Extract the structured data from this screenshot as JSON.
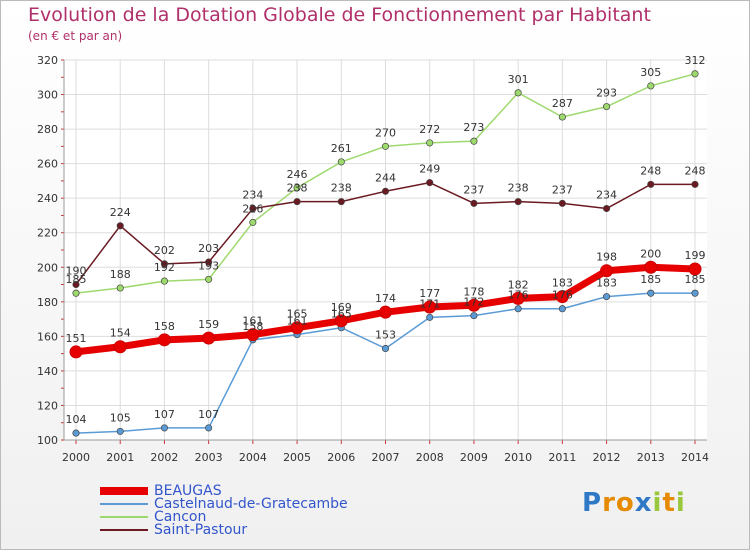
{
  "title": "Evolution de la Dotation Globale de Fonctionnement par Habitant",
  "subtitle": "(en € et par an)",
  "logo": "Proxiti",
  "chart_data": {
    "type": "line",
    "title": "Evolution de la Dotation Globale de Fonctionnement par Habitant",
    "subtitle": "(en € et par an)",
    "x": [
      "2000",
      "2001",
      "2002",
      "2003",
      "2004",
      "2005",
      "2006",
      "2007",
      "2008",
      "2009",
      "2010",
      "2011",
      "2012",
      "2013",
      "2014"
    ],
    "ylim": [
      100,
      320
    ],
    "yticks": [
      100,
      120,
      140,
      160,
      180,
      200,
      220,
      240,
      260,
      280,
      300,
      320
    ],
    "grid": true,
    "legend_position": "bottom",
    "series": [
      {
        "name": "BEAUGAS",
        "color": "#e60000",
        "values": [
          151,
          154,
          158,
          159,
          161,
          165,
          169,
          174,
          177,
          178,
          182,
          183,
          198,
          200,
          199
        ]
      },
      {
        "name": "Castelnaud-de-Gratecambe",
        "color": "#5b9bd5",
        "values": [
          104,
          105,
          107,
          107,
          158,
          161,
          165,
          153,
          171,
          172,
          176,
          176,
          183,
          185,
          185
        ]
      },
      {
        "name": "Cancon",
        "color": "#9ed96e",
        "values": [
          185,
          188,
          192,
          193,
          226,
          246,
          261,
          270,
          272,
          273,
          301,
          287,
          293,
          305,
          312
        ]
      },
      {
        "name": "Saint-Pastour",
        "color": "#6b1a22",
        "values": [
          190,
          224,
          202,
          203,
          234,
          238,
          238,
          244,
          249,
          237,
          238,
          237,
          234,
          248,
          248
        ]
      }
    ]
  }
}
